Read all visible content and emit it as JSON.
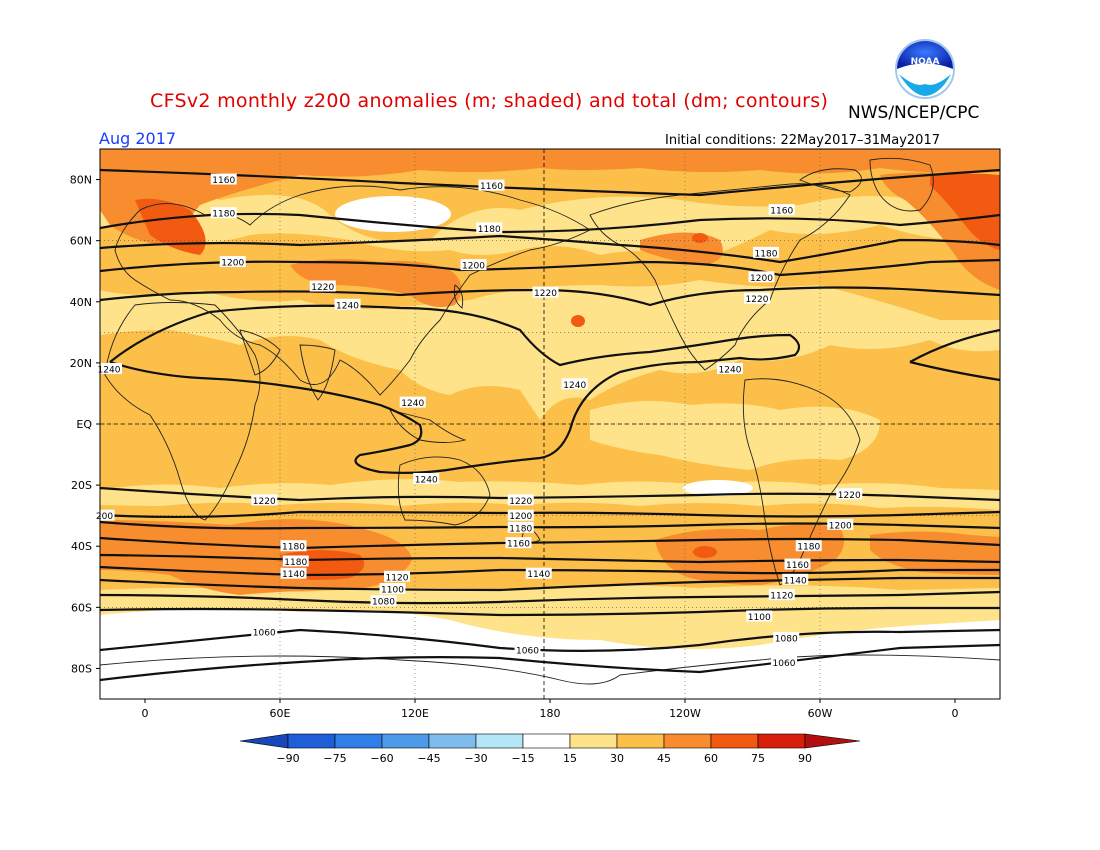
{
  "title": "CFSv2 monthly z200 anomalies (m; shaded) and total (dm; contours)",
  "agency": "NWS/NCEP/CPC",
  "logo": {
    "text": "NOAA",
    "name": "noaa-logo"
  },
  "valid_month": "Aug 2017",
  "initial_conditions": "Initial conditions: 22May2017–31May2017",
  "lat_labels": [
    "80N",
    "60N",
    "40N",
    "20N",
    "EQ",
    "20S",
    "40S",
    "60S",
    "80S"
  ],
  "lon_labels": [
    "0",
    "60E",
    "120E",
    "180",
    "120W",
    "60W",
    "0"
  ],
  "colorbar": {
    "ticks": [
      "−90",
      "−75",
      "−60",
      "−45",
      "−30",
      "−15",
      "15",
      "30",
      "45",
      "60",
      "75",
      "90"
    ],
    "colors": [
      "#1e5fd8",
      "#2f7fe6",
      "#4c9ae8",
      "#7fbcee",
      "#b4e6f7",
      "#ffffff",
      "#ffe38a",
      "#fcc04a",
      "#f78d2e",
      "#f25a12",
      "#d71f0a"
    ],
    "end_low": "#1747b8",
    "end_high": "#b01010"
  },
  "contour_labels": [
    {
      "t": "1160",
      "lat": 80,
      "lon": 35
    },
    {
      "t": "1160",
      "lat": 78,
      "lon": 154
    },
    {
      "t": "1160",
      "lat": 70,
      "lon": 283
    },
    {
      "t": "1180",
      "lat": 69,
      "lon": 35
    },
    {
      "t": "1180",
      "lat": 64,
      "lon": 153
    },
    {
      "t": "1180",
      "lat": 56,
      "lon": 276
    },
    {
      "t": "1200",
      "lat": 53,
      "lon": 39
    },
    {
      "t": "1200",
      "lat": 52,
      "lon": 146
    },
    {
      "t": "1200",
      "lat": 48,
      "lon": 274
    },
    {
      "t": "1220",
      "lat": 45,
      "lon": 79
    },
    {
      "t": "1220",
      "lat": 43,
      "lon": 178
    },
    {
      "t": "1220",
      "lat": 41,
      "lon": 272
    },
    {
      "t": "1240",
      "lat": 39,
      "lon": 90
    },
    {
      "t": "1240",
      "lat": 18,
      "lon": -16
    },
    {
      "t": "1240",
      "lat": 7,
      "lon": 119
    },
    {
      "t": "1240",
      "lat": 13,
      "lon": 191
    },
    {
      "t": "1240",
      "lat": 18,
      "lon": 260
    },
    {
      "t": "1240",
      "lat": -18,
      "lon": 125
    },
    {
      "t": "1220",
      "lat": -25,
      "lon": 53
    },
    {
      "t": "1220",
      "lat": -25,
      "lon": 167
    },
    {
      "t": "1220",
      "lat": -23,
      "lon": 313
    },
    {
      "t": "200",
      "lat": -30,
      "lon": -18
    },
    {
      "t": "1200",
      "lat": -30,
      "lon": 167
    },
    {
      "t": "1200",
      "lat": -33,
      "lon": 309
    },
    {
      "t": "1180",
      "lat": -34,
      "lon": 167
    },
    {
      "t": "1160",
      "lat": -39,
      "lon": 166
    },
    {
      "t": "1180",
      "lat": -40,
      "lon": 66
    },
    {
      "t": "1180",
      "lat": -45,
      "lon": 67
    },
    {
      "t": "1140",
      "lat": -49,
      "lon": 66
    },
    {
      "t": "1120",
      "lat": -50,
      "lon": 112
    },
    {
      "t": "1100",
      "lat": -54,
      "lon": 110
    },
    {
      "t": "1080",
      "lat": -58,
      "lon": 106
    },
    {
      "t": "1060",
      "lat": -68,
      "lon": 53
    },
    {
      "t": "1060",
      "lat": -74,
      "lon": 170
    },
    {
      "t": "1140",
      "lat": -49,
      "lon": 175
    },
    {
      "t": "1180",
      "lat": -40,
      "lon": 295
    },
    {
      "t": "1160",
      "lat": -46,
      "lon": 290
    },
    {
      "t": "1140",
      "lat": -51,
      "lon": 289
    },
    {
      "t": "1120",
      "lat": -56,
      "lon": 283
    },
    {
      "t": "1100",
      "lat": -63,
      "lon": 273
    },
    {
      "t": "1080",
      "lat": -70,
      "lon": 285
    },
    {
      "t": "1060",
      "lat": -78,
      "lon": 284
    }
  ]
}
